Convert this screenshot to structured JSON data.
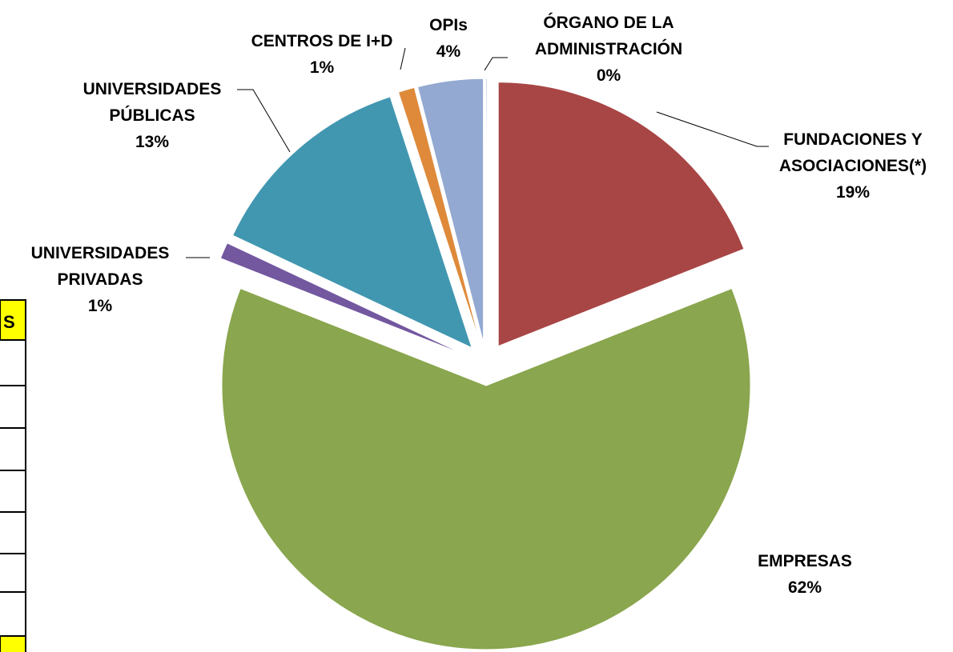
{
  "chart_data": {
    "type": "pie",
    "categories": [
      "FUNDACIONES Y ASOCIACIONES(*)",
      "EMPRESAS",
      "UNIVERSIDADES PRIVADAS",
      "UNIVERSIDADES PÚBLICAS",
      "CENTROS DE I+D",
      "OPIs",
      "ÓRGANO DE LA ADMINISTRACIÓN"
    ],
    "values": [
      19,
      62,
      1,
      13,
      1,
      4,
      0
    ],
    "value_labels": [
      "19%",
      "62%",
      "1%",
      "13%",
      "1%",
      "4%",
      "0%"
    ],
    "colors": [
      "#a84645",
      "#8aa64e",
      "#7358a0",
      "#4197b0",
      "#de8a3a",
      "#93a9d1",
      "#4f81bd"
    ]
  },
  "table": {
    "header": "S"
  }
}
